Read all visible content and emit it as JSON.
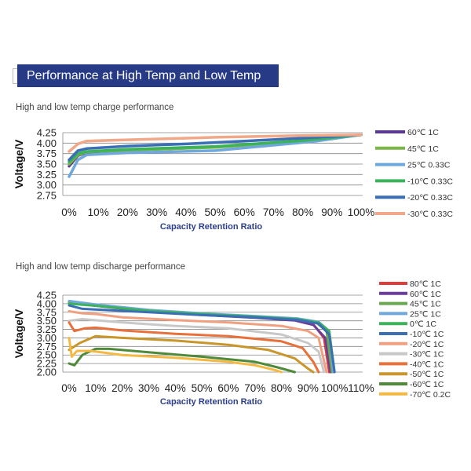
{
  "header": {
    "title": "Performance at High Temp and Low Temp"
  },
  "chart_data": [
    {
      "type": "line",
      "title": "High and low temp charge performance",
      "xlabel": "Capacity Retention Ratio",
      "ylabel": "Voltage/V",
      "xlim": [
        0,
        100
      ],
      "ylim": [
        2.75,
        4.25
      ],
      "x_ticks": [
        "0%",
        "10%",
        "20%",
        "30%",
        "40%",
        "50%",
        "60%",
        "70%",
        "80%",
        "90%",
        "100%"
      ],
      "y_ticks": [
        "4.25",
        "4.00",
        "3.75",
        "3.50",
        "3.25",
        "3.00",
        "2.75"
      ],
      "grid": true,
      "legend": "right",
      "series": [
        {
          "name": "60℃ 1C",
          "color": "#5b3a8f",
          "points": [
            [
              0,
              3.45
            ],
            [
              3,
              3.7
            ],
            [
              6,
              3.78
            ],
            [
              20,
              3.83
            ],
            [
              40,
              3.88
            ],
            [
              60,
              3.95
            ],
            [
              80,
              4.05
            ],
            [
              90,
              4.14
            ],
            [
              100,
              4.2
            ]
          ]
        },
        {
          "name": "45℃ 1C",
          "color": "#7ab648",
          "points": [
            [
              0,
              3.5
            ],
            [
              3,
              3.72
            ],
            [
              6,
              3.79
            ],
            [
              20,
              3.83
            ],
            [
              50,
              3.9
            ],
            [
              80,
              4.05
            ],
            [
              100,
              4.2
            ]
          ]
        },
        {
          "name": "25℃ 0.33C",
          "color": "#6fa8dc",
          "points": [
            [
              0,
              3.2
            ],
            [
              3,
              3.6
            ],
            [
              6,
              3.72
            ],
            [
              20,
              3.77
            ],
            [
              50,
              3.82
            ],
            [
              70,
              3.95
            ],
            [
              85,
              4.05
            ],
            [
              100,
              4.2
            ]
          ]
        },
        {
          "name": "-10℃ 0.33C",
          "color": "#3cb35a",
          "points": [
            [
              0,
              3.55
            ],
            [
              3,
              3.75
            ],
            [
              6,
              3.8
            ],
            [
              20,
              3.85
            ],
            [
              50,
              3.92
            ],
            [
              80,
              4.06
            ],
            [
              100,
              4.2
            ]
          ]
        },
        {
          "name": "-20℃ 0.33C",
          "color": "#3a6fb5",
          "points": [
            [
              0,
              3.6
            ],
            [
              3,
              3.82
            ],
            [
              6,
              3.87
            ],
            [
              20,
              3.93
            ],
            [
              40,
              3.98
            ],
            [
              60,
              4.05
            ],
            [
              80,
              4.12
            ],
            [
              100,
              4.2
            ]
          ]
        },
        {
          "name": "-30℃ 0.33C",
          "color": "#f0a888",
          "points": [
            [
              0,
              3.8
            ],
            [
              3,
              3.98
            ],
            [
              6,
              4.05
            ],
            [
              20,
              4.08
            ],
            [
              50,
              4.14
            ],
            [
              80,
              4.18
            ],
            [
              100,
              4.2
            ]
          ]
        }
      ]
    },
    {
      "type": "line",
      "title": "High and low temp discharge performance",
      "xlabel": "Capacity Retention Ratio",
      "ylabel": "Voltage/V",
      "xlim": [
        0,
        110
      ],
      "ylim": [
        2.0,
        4.25
      ],
      "x_ticks": [
        "0%",
        "10%",
        "20%",
        "30%",
        "40%",
        "50%",
        "60%",
        "70%",
        "80%",
        "90%",
        "100%",
        "110%"
      ],
      "y_ticks": [
        "4.25",
        "4.00",
        "3.75",
        "3.50",
        "3.25",
        "3.00",
        "2.75",
        "2.50",
        "2.25",
        "2.00"
      ],
      "grid": true,
      "legend": "right",
      "series": [
        {
          "name": "80℃ 1C",
          "color": "#e03a3a",
          "points": [
            [
              0,
              4.05
            ],
            [
              10,
              3.95
            ],
            [
              30,
              3.78
            ],
            [
              50,
              3.68
            ],
            [
              70,
              3.6
            ],
            [
              85,
              3.52
            ],
            [
              92,
              3.4
            ],
            [
              96,
              3.0
            ],
            [
              98,
              2.0
            ]
          ]
        },
        {
          "name": "60℃ 1C",
          "color": "#6a3d9a",
          "points": [
            [
              0,
              4.03
            ],
            [
              10,
              3.94
            ],
            [
              30,
              3.77
            ],
            [
              50,
              3.67
            ],
            [
              70,
              3.59
            ],
            [
              85,
              3.51
            ],
            [
              92,
              3.38
            ],
            [
              96.5,
              3.0
            ],
            [
              98.5,
              2.0
            ]
          ]
        },
        {
          "name": "45℃ 1C",
          "color": "#6aa84f",
          "points": [
            [
              0,
              4.05
            ],
            [
              10,
              3.96
            ],
            [
              30,
              3.8
            ],
            [
              50,
              3.7
            ],
            [
              70,
              3.62
            ],
            [
              85,
              3.55
            ],
            [
              93,
              3.45
            ],
            [
              97,
              3.2
            ],
            [
              99,
              2.0
            ]
          ]
        },
        {
          "name": "25℃ 1C",
          "color": "#6fa8dc",
          "points": [
            [
              0,
              4.08
            ],
            [
              10,
              3.98
            ],
            [
              30,
              3.82
            ],
            [
              50,
              3.72
            ],
            [
              70,
              3.64
            ],
            [
              86,
              3.57
            ],
            [
              94,
              3.47
            ],
            [
              98,
              3.2
            ],
            [
              99.5,
              2.0
            ]
          ]
        },
        {
          "name": "0℃  1C",
          "color": "#3cb35a",
          "points": [
            [
              0,
              4.0
            ],
            [
              10,
              3.94
            ],
            [
              30,
              3.79
            ],
            [
              50,
              3.7
            ],
            [
              70,
              3.62
            ],
            [
              86,
              3.55
            ],
            [
              94,
              3.45
            ],
            [
              98,
              3.2
            ],
            [
              100,
              2.0
            ]
          ]
        },
        {
          "name": "-10℃ 1C",
          "color": "#3a6fb5",
          "points": [
            [
              0,
              3.95
            ],
            [
              5,
              3.85
            ],
            [
              30,
              3.75
            ],
            [
              50,
              3.67
            ],
            [
              70,
              3.6
            ],
            [
              86,
              3.53
            ],
            [
              94,
              3.42
            ],
            [
              98,
              3.1
            ],
            [
              100,
              2.0
            ]
          ]
        },
        {
          "name": "-20℃ 1C",
          "color": "#f0a080",
          "points": [
            [
              0,
              3.78
            ],
            [
              5,
              3.72
            ],
            [
              10,
              3.7
            ],
            [
              20,
              3.6
            ],
            [
              40,
              3.52
            ],
            [
              60,
              3.45
            ],
            [
              80,
              3.35
            ],
            [
              90,
              3.2
            ],
            [
              94,
              3.0
            ],
            [
              97,
              2.0
            ]
          ]
        },
        {
          "name": "-30℃ 1C",
          "color": "#c8c8c8",
          "points": [
            [
              0,
              3.5
            ],
            [
              5,
              3.55
            ],
            [
              20,
              3.45
            ],
            [
              40,
              3.35
            ],
            [
              60,
              3.28
            ],
            [
              80,
              3.1
            ],
            [
              90,
              2.85
            ],
            [
              94,
              2.6
            ],
            [
              96,
              2.0
            ]
          ]
        },
        {
          "name": "-40℃ 1C",
          "color": "#e8703a",
          "points": [
            [
              0,
              3.45
            ],
            [
              2,
              3.2
            ],
            [
              6,
              3.28
            ],
            [
              10,
              3.3
            ],
            [
              20,
              3.22
            ],
            [
              40,
              3.12
            ],
            [
              60,
              3.05
            ],
            [
              80,
              2.9
            ],
            [
              88,
              2.7
            ],
            [
              92,
              2.3
            ],
            [
              94,
              2.0
            ]
          ]
        },
        {
          "name": "-50℃ 1C",
          "color": "#c8962a",
          "points": [
            [
              0,
              2.65
            ],
            [
              4,
              2.85
            ],
            [
              10,
              3.05
            ],
            [
              20,
              3.0
            ],
            [
              40,
              2.92
            ],
            [
              60,
              2.8
            ],
            [
              75,
              2.65
            ],
            [
              85,
              2.4
            ],
            [
              90,
              2.1
            ],
            [
              92,
              2.0
            ]
          ]
        },
        {
          "name": "-60℃ 1C",
          "color": "#4f8a3a",
          "points": [
            [
              0,
              2.25
            ],
            [
              2,
              2.2
            ],
            [
              5,
              2.5
            ],
            [
              10,
              2.68
            ],
            [
              15,
              2.68
            ],
            [
              30,
              2.58
            ],
            [
              50,
              2.45
            ],
            [
              70,
              2.3
            ],
            [
              78,
              2.15
            ],
            [
              85,
              2.0
            ]
          ]
        },
        {
          "name": "-70℃ 0.2C",
          "color": "#f4b942",
          "points": [
            [
              0,
              3.0
            ],
            [
              1,
              2.45
            ],
            [
              3,
              2.62
            ],
            [
              8,
              2.62
            ],
            [
              20,
              2.5
            ],
            [
              40,
              2.42
            ],
            [
              60,
              2.3
            ],
            [
              70,
              2.2
            ],
            [
              78,
              2.05
            ],
            [
              80,
              2.0
            ]
          ]
        }
      ]
    }
  ]
}
